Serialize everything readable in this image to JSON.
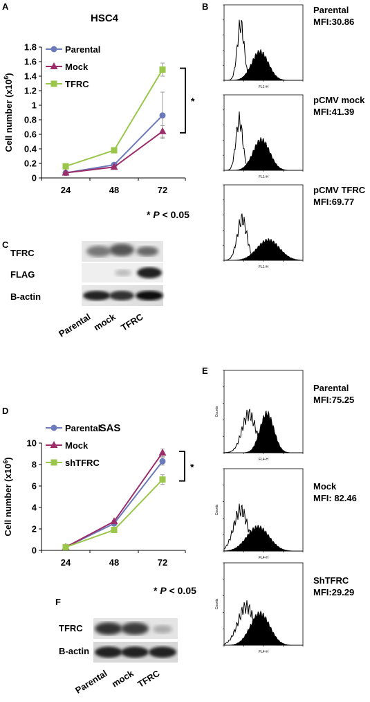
{
  "panels": {
    "A": "A",
    "B": "B",
    "C": "C",
    "D": "D",
    "E": "E",
    "F": "F"
  },
  "chart_data": [
    {
      "panel": "A",
      "type": "line",
      "title": "HSC4",
      "xlabel": "",
      "ylabel": "Cell number (x10⁶)",
      "categories": [
        "24",
        "48",
        "72"
      ],
      "ylim": [
        0,
        1.8
      ],
      "yticks": [
        "0",
        "0.2",
        "0.4",
        "0.6",
        "0.8",
        "1",
        "1.2",
        "1.4",
        "1.6",
        "1.8"
      ],
      "series": [
        {
          "name": "Parental",
          "values": [
            0.07,
            0.18,
            0.86
          ],
          "err": [
            0.01,
            0.02,
            0.32
          ],
          "color": "#6b7ab8",
          "marker": "circle"
        },
        {
          "name": "Mock",
          "values": [
            0.07,
            0.15,
            0.64
          ],
          "err": [
            0.01,
            0.02,
            0.08
          ],
          "color": "#9b2d6b",
          "marker": "triangle"
        },
        {
          "name": "TFRC",
          "values": [
            0.16,
            0.38,
            1.49
          ],
          "err": [
            0.01,
            0.02,
            0.09
          ],
          "color": "#9ac64a",
          "marker": "square"
        }
      ],
      "significance": "*",
      "p_note_star": "*",
      "p_note_italic": "P",
      "p_note_text": " < 0.05"
    },
    {
      "panel": "D",
      "type": "line",
      "title": "SAS",
      "xlabel": "",
      "ylabel": "Cell number (x10⁶)",
      "categories": [
        "24",
        "48",
        "72"
      ],
      "ylim": [
        0,
        10
      ],
      "yticks": [
        "0",
        "2",
        "4",
        "6",
        "8",
        "10"
      ],
      "series": [
        {
          "name": "Parental",
          "values": [
            0.3,
            2.5,
            8.3
          ],
          "err": [
            0.05,
            0.1,
            0.35
          ],
          "color": "#6b7ab8",
          "marker": "circle"
        },
        {
          "name": "Mock",
          "values": [
            0.3,
            2.7,
            9.1
          ],
          "err": [
            0.05,
            0.1,
            0.35
          ],
          "color": "#9b2d6b",
          "marker": "triangle"
        },
        {
          "name": "shTFRC",
          "values": [
            0.3,
            1.9,
            6.6
          ],
          "err": [
            0.05,
            0.1,
            0.45
          ],
          "color": "#9ac64a",
          "marker": "square"
        }
      ],
      "significance": "*",
      "p_note_star": "*",
      "p_note_italic": "P",
      "p_note_text": " < 0.05"
    }
  ],
  "histograms_B": [
    {
      "line1": "Parental",
      "line2": "MFI:30.86",
      "xaxis": "FL1-H"
    },
    {
      "line1": "pCMV mock",
      "line2": "MFI:41.39",
      "xaxis": "FL1-H"
    },
    {
      "line1": "pCMV TFRC",
      "line2": "MFI:69.77",
      "xaxis": "FL1-H"
    }
  ],
  "histograms_E": [
    {
      "line1": "Parental",
      "line2": "MFI:75.25",
      "xaxis": "FL4-H",
      "yaxis": "Counts"
    },
    {
      "line1": "Mock",
      "line2": "MFI: 82.46",
      "xaxis": "FL4-H",
      "yaxis": "Counts"
    },
    {
      "line1": "ShTFRC",
      "line2": "MFI:29.29",
      "xaxis": "FL4-H",
      "yaxis": "Counts"
    }
  ],
  "blot_C": {
    "rows": [
      "TFRC",
      "FLAG",
      "B-actin"
    ],
    "lanes": [
      "Parental",
      "mock",
      "TFRC"
    ]
  },
  "blot_F": {
    "rows": [
      "TFRC",
      "B-actin"
    ],
    "lanes": [
      "Parental",
      "mock",
      "TFRC"
    ]
  }
}
